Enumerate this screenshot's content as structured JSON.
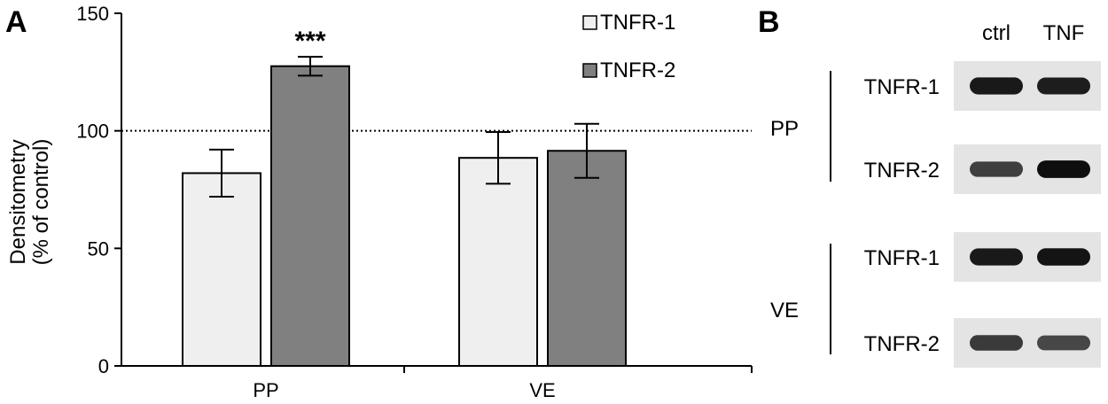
{
  "panel_a_label": "A",
  "panel_b_label": "B",
  "chart_data": {
    "type": "bar",
    "categories": [
      "PP",
      "VE"
    ],
    "series": [
      {
        "name": "TNFR-1",
        "values": [
          82,
          88.5
        ],
        "errors": [
          10,
          11
        ],
        "color": "#efefef"
      },
      {
        "name": "TNFR-2",
        "values": [
          127.5,
          91.5
        ],
        "errors": [
          4,
          11.5
        ],
        "color": "#808080"
      }
    ],
    "ylim": [
      0,
      150
    ],
    "yticks": [
      "0",
      "50",
      "100",
      "150"
    ],
    "ylabel_lines": [
      "Densitometry",
      "(% of control)"
    ],
    "reference_line": 100,
    "significance": [
      {
        "category": "PP",
        "series": "TNFR-2",
        "label": "***"
      }
    ],
    "legend_position": "top-right",
    "grid": false
  },
  "blot": {
    "columns": [
      "ctrl",
      "TNF"
    ],
    "groups": [
      {
        "name": "PP",
        "rows": [
          {
            "label": "TNFR-1",
            "intensity": [
              0.92,
              0.9
            ]
          },
          {
            "label": "TNFR-2",
            "intensity": [
              0.72,
              0.98
            ]
          }
        ]
      },
      {
        "name": "VE",
        "rows": [
          {
            "label": "TNFR-1",
            "intensity": [
              0.92,
              0.95
            ]
          },
          {
            "label": "TNFR-2",
            "intensity": [
              0.75,
              0.68
            ]
          }
        ]
      }
    ]
  }
}
